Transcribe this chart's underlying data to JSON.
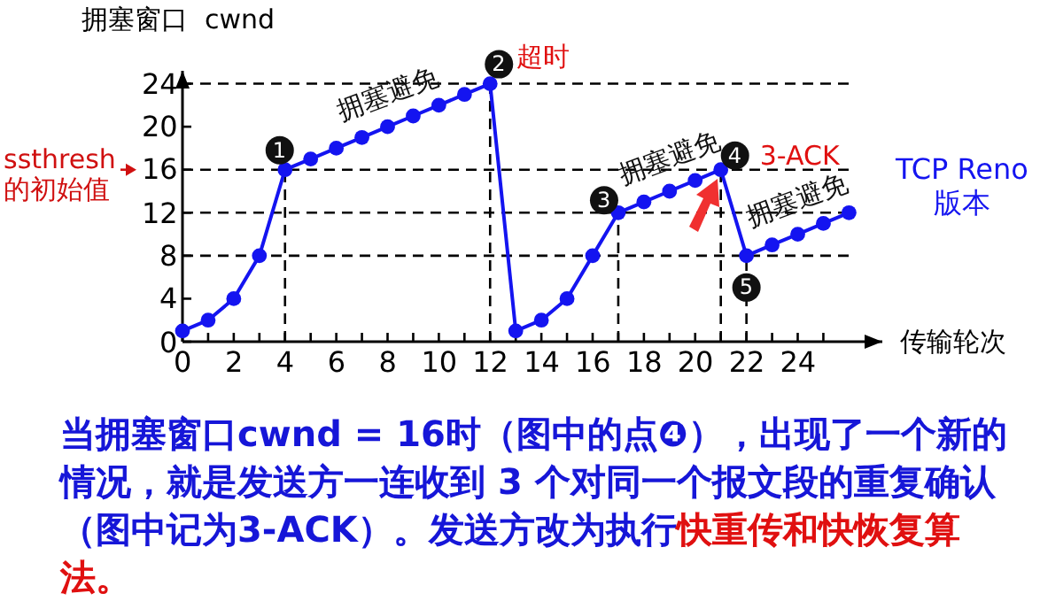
{
  "chart_data": {
    "type": "line",
    "xlabel": "传输轮次",
    "ylabel": "拥塞窗口  cwnd",
    "x": [
      0,
      1,
      2,
      3,
      4,
      5,
      6,
      7,
      8,
      9,
      10,
      11,
      12,
      13,
      14,
      15,
      16,
      17,
      18,
      19,
      20,
      21,
      22,
      23,
      24,
      25,
      26
    ],
    "series": [
      {
        "name": "TCP Reno 版本",
        "color": "#1414f0",
        "values": [
          1,
          2,
          4,
          8,
          16,
          17,
          18,
          19,
          20,
          21,
          22,
          23,
          24,
          1,
          2,
          4,
          8,
          12,
          13,
          14,
          15,
          16,
          8,
          9,
          10,
          11,
          12
        ]
      }
    ],
    "xlim": [
      0,
      27.3
    ],
    "ylim": [
      0,
      25.2
    ],
    "xticks": [
      0,
      {
        "value": 1,
        "label": null
      },
      2,
      {
        "value": 3,
        "label": null
      },
      4,
      {
        "value": 5,
        "label": null
      },
      6,
      {
        "value": 7,
        "label": null
      },
      8,
      {
        "value": 9,
        "label": null
      },
      10,
      {
        "value": 11,
        "label": null
      },
      12,
      {
        "value": 13,
        "label": null
      },
      14,
      {
        "value": 15,
        "label": null
      },
      16,
      {
        "value": 17,
        "label": null
      },
      18,
      {
        "value": 19,
        "label": null
      },
      20,
      {
        "value": 21,
        "label": null
      },
      22,
      {
        "value": 23,
        "label": null
      },
      24,
      {
        "value": 25,
        "label": null
      }
    ],
    "yticks": [
      0,
      4,
      8,
      12,
      16,
      20,
      24
    ],
    "grid": false,
    "marker": "circle",
    "line_style": "solid",
    "ref_lines": [
      {
        "axis": "y",
        "value": 24,
        "color": "#000000",
        "line_style": "dashed"
      },
      {
        "axis": "y",
        "value": 16,
        "label": "ssthresh 的初始值",
        "color": "#000000",
        "line_style": "dashed"
      },
      {
        "axis": "y",
        "value": 12,
        "color": "#000000",
        "line_style": "dashed"
      },
      {
        "axis": "y",
        "value": 8,
        "color": "#000000",
        "line_style": "dashed"
      },
      {
        "axis": "x",
        "value": 4,
        "color": "#000000",
        "line_style": "dashed"
      },
      {
        "axis": "x",
        "value": 12,
        "color": "#000000",
        "line_style": "dashed"
      },
      {
        "axis": "x",
        "value": 17,
        "color": "#000000",
        "line_style": "dashed"
      },
      {
        "axis": "x",
        "value": 21,
        "color": "#000000",
        "line_style": "dashed"
      },
      {
        "axis": "x",
        "value": 22,
        "color": "#000000",
        "line_style": "dashed"
      }
    ],
    "annotations": [
      {
        "text": "1",
        "x": 4,
        "y": 16
      },
      {
        "text": "2",
        "x": 12,
        "y": 24
      },
      {
        "text": "3",
        "x": 17,
        "y": 12
      },
      {
        "text": "4",
        "x": 21,
        "y": 16
      },
      {
        "text": "5",
        "x": 22,
        "y": 8
      },
      {
        "text": "超时",
        "x": 12,
        "y": 24
      },
      {
        "text": "3-ACK",
        "x": 21,
        "y": 16
      },
      {
        "text": "拥塞避免",
        "x": 8,
        "y": 20
      },
      {
        "text": "拥塞避免",
        "x": 19,
        "y": 14
      },
      {
        "text": "拥塞避免",
        "x": 24,
        "y": 10
      },
      "当拥塞窗口cwnd = 16时（图中的点❹），出现了一个新的情况，就是发送方一连收到 3 个对同一个报文段的重复确认（图中记为3-ACK）。发送方改为执行",
      "快重传和快恢复算法。"
    ]
  }
}
